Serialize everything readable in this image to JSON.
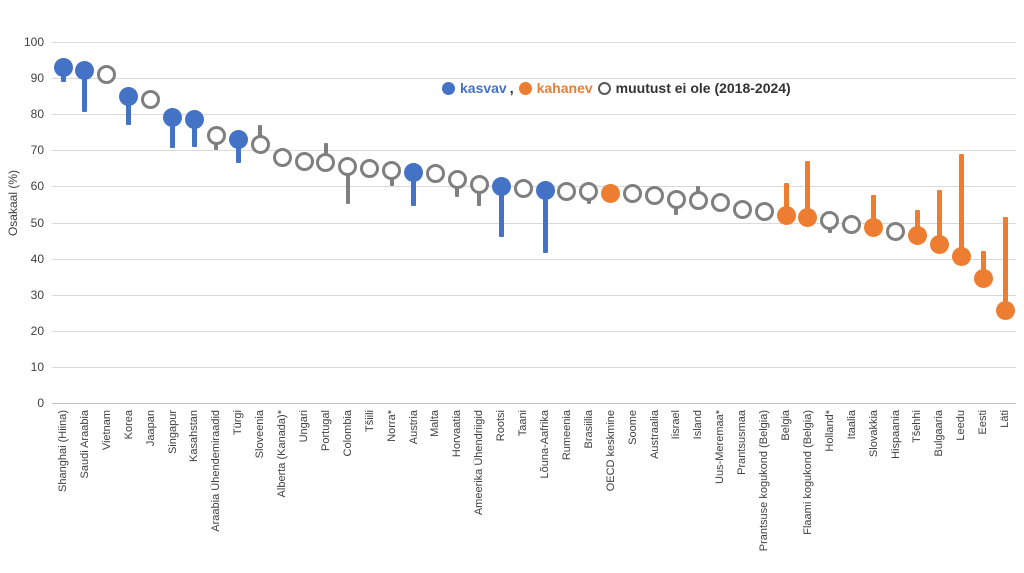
{
  "legend_separator": ",",
  "chart_data": {
    "type": "scatter",
    "variant": "lollipop",
    "title": "",
    "xlabel": "",
    "ylabel": "Osakaal (%)",
    "ylim": [
      0,
      100
    ],
    "yticks": [
      0,
      10,
      20,
      30,
      40,
      50,
      60,
      70,
      80,
      90,
      100
    ],
    "grid": "horizontal",
    "legend_position": "top-center-inside",
    "legend": [
      {
        "label": "kasvav",
        "marker": "filled",
        "color": "#4472C4"
      },
      {
        "label": "kahanev",
        "marker": "filled",
        "color": "#ED7D31"
      },
      {
        "label": "muutust ei ole (2018-2024)",
        "marker": "open",
        "color": "#595959"
      }
    ],
    "colors": {
      "kasvav": "#4472C4",
      "kahanev": "#ED7D31",
      "no_change_stroke": "#7f7f7f",
      "gridline": "#d9d9d9",
      "axis_text": "#404040"
    },
    "points": [
      {
        "label": "Shanghai (Hiina)",
        "trend": "kasvav",
        "value": 93,
        "tail": 89
      },
      {
        "label": "Saudi Araabia",
        "trend": "kasvav",
        "value": 92,
        "tail": 80.5
      },
      {
        "label": "Vietnam",
        "trend": "none",
        "value": 91,
        "tail": null
      },
      {
        "label": "Korea",
        "trend": "kasvav",
        "value": 85,
        "tail": 77
      },
      {
        "label": "Jaapan",
        "trend": "none",
        "value": 84,
        "tail": null
      },
      {
        "label": "Singapur",
        "trend": "kasvav",
        "value": 79,
        "tail": 70.5
      },
      {
        "label": "Kasahstan",
        "trend": "kasvav",
        "value": 78.5,
        "tail": 71
      },
      {
        "label": "Araabia Ühendemiraadid",
        "trend": "none",
        "value": 74,
        "tail": 70
      },
      {
        "label": "Türgi",
        "trend": "kasvav",
        "value": 73,
        "tail": 66.5
      },
      {
        "label": "Sloveenia",
        "trend": "none",
        "value": 71.5,
        "tail": 77
      },
      {
        "label": "Alberta (Kanada)*",
        "trend": "none",
        "value": 68,
        "tail": null
      },
      {
        "label": "Ungari",
        "trend": "none",
        "value": 67,
        "tail": null
      },
      {
        "label": "Portugal",
        "trend": "none",
        "value": 66.5,
        "tail": 72
      },
      {
        "label": "Colombia",
        "trend": "none",
        "value": 65.5,
        "tail": 55
      },
      {
        "label": "Tšiili",
        "trend": "none",
        "value": 65,
        "tail": null
      },
      {
        "label": "Norra*",
        "trend": "none",
        "value": 64.5,
        "tail": 60
      },
      {
        "label": "Austria",
        "trend": "kasvav",
        "value": 64,
        "tail": 54.5
      },
      {
        "label": "Malta",
        "trend": "none",
        "value": 63.5,
        "tail": null
      },
      {
        "label": "Horvaatia",
        "trend": "none",
        "value": 62,
        "tail": 57
      },
      {
        "label": "Ameerika Ühendriigid",
        "trend": "none",
        "value": 60.5,
        "tail": 54.5
      },
      {
        "label": "Rootsi",
        "trend": "kasvav",
        "value": 60,
        "tail": 46
      },
      {
        "label": "Taani",
        "trend": "none",
        "value": 59.5,
        "tail": null
      },
      {
        "label": "Lõuna-Aafrika",
        "trend": "kasvav",
        "value": 59,
        "tail": 41.5
      },
      {
        "label": "Rumeenia",
        "trend": "none",
        "value": 58.5,
        "tail": null
      },
      {
        "label": "Brasiilia",
        "trend": "none",
        "value": 58.5,
        "tail": 55
      },
      {
        "label": "OECD keskmine",
        "trend": "kahanev",
        "value": 58,
        "tail": null
      },
      {
        "label": "Soome",
        "trend": "none",
        "value": 58,
        "tail": null
      },
      {
        "label": "Austraalia",
        "trend": "none",
        "value": 57.5,
        "tail": null
      },
      {
        "label": "Iisrael",
        "trend": "none",
        "value": 56.5,
        "tail": 52
      },
      {
        "label": "Island",
        "trend": "none",
        "value": 56,
        "tail": 60
      },
      {
        "label": "Uus-Meremaa*",
        "trend": "none",
        "value": 55.5,
        "tail": null
      },
      {
        "label": "Prantsusmaa",
        "trend": "none",
        "value": 53.5,
        "tail": null
      },
      {
        "label": "Prantsuse kogukond (Belgia)",
        "trend": "none",
        "value": 53,
        "tail": null
      },
      {
        "label": "Belgia",
        "trend": "kahanev",
        "value": 52,
        "tail": 61
      },
      {
        "label": "Flaami kogukond (Belgia)",
        "trend": "kahanev",
        "value": 51.5,
        "tail": 67
      },
      {
        "label": "Holland*",
        "trend": "none",
        "value": 50.5,
        "tail": 47
      },
      {
        "label": "Itaalia",
        "trend": "none",
        "value": 49.5,
        "tail": null
      },
      {
        "label": "Slovakkia",
        "trend": "kahanev",
        "value": 48.5,
        "tail": 57.5
      },
      {
        "label": "Hispaania",
        "trend": "none",
        "value": 47.5,
        "tail": null
      },
      {
        "label": "Tšehhi",
        "trend": "kahanev",
        "value": 46.5,
        "tail": 53.5
      },
      {
        "label": "Bulgaaria",
        "trend": "kahanev",
        "value": 44,
        "tail": 59
      },
      {
        "label": "Leedu",
        "trend": "kahanev",
        "value": 40.5,
        "tail": 69
      },
      {
        "label": "Eesti",
        "trend": "kahanev",
        "value": 34.5,
        "tail": 42
      },
      {
        "label": "Läti",
        "trend": "kahanev",
        "value": 25.5,
        "tail": 51.5
      }
    ]
  }
}
